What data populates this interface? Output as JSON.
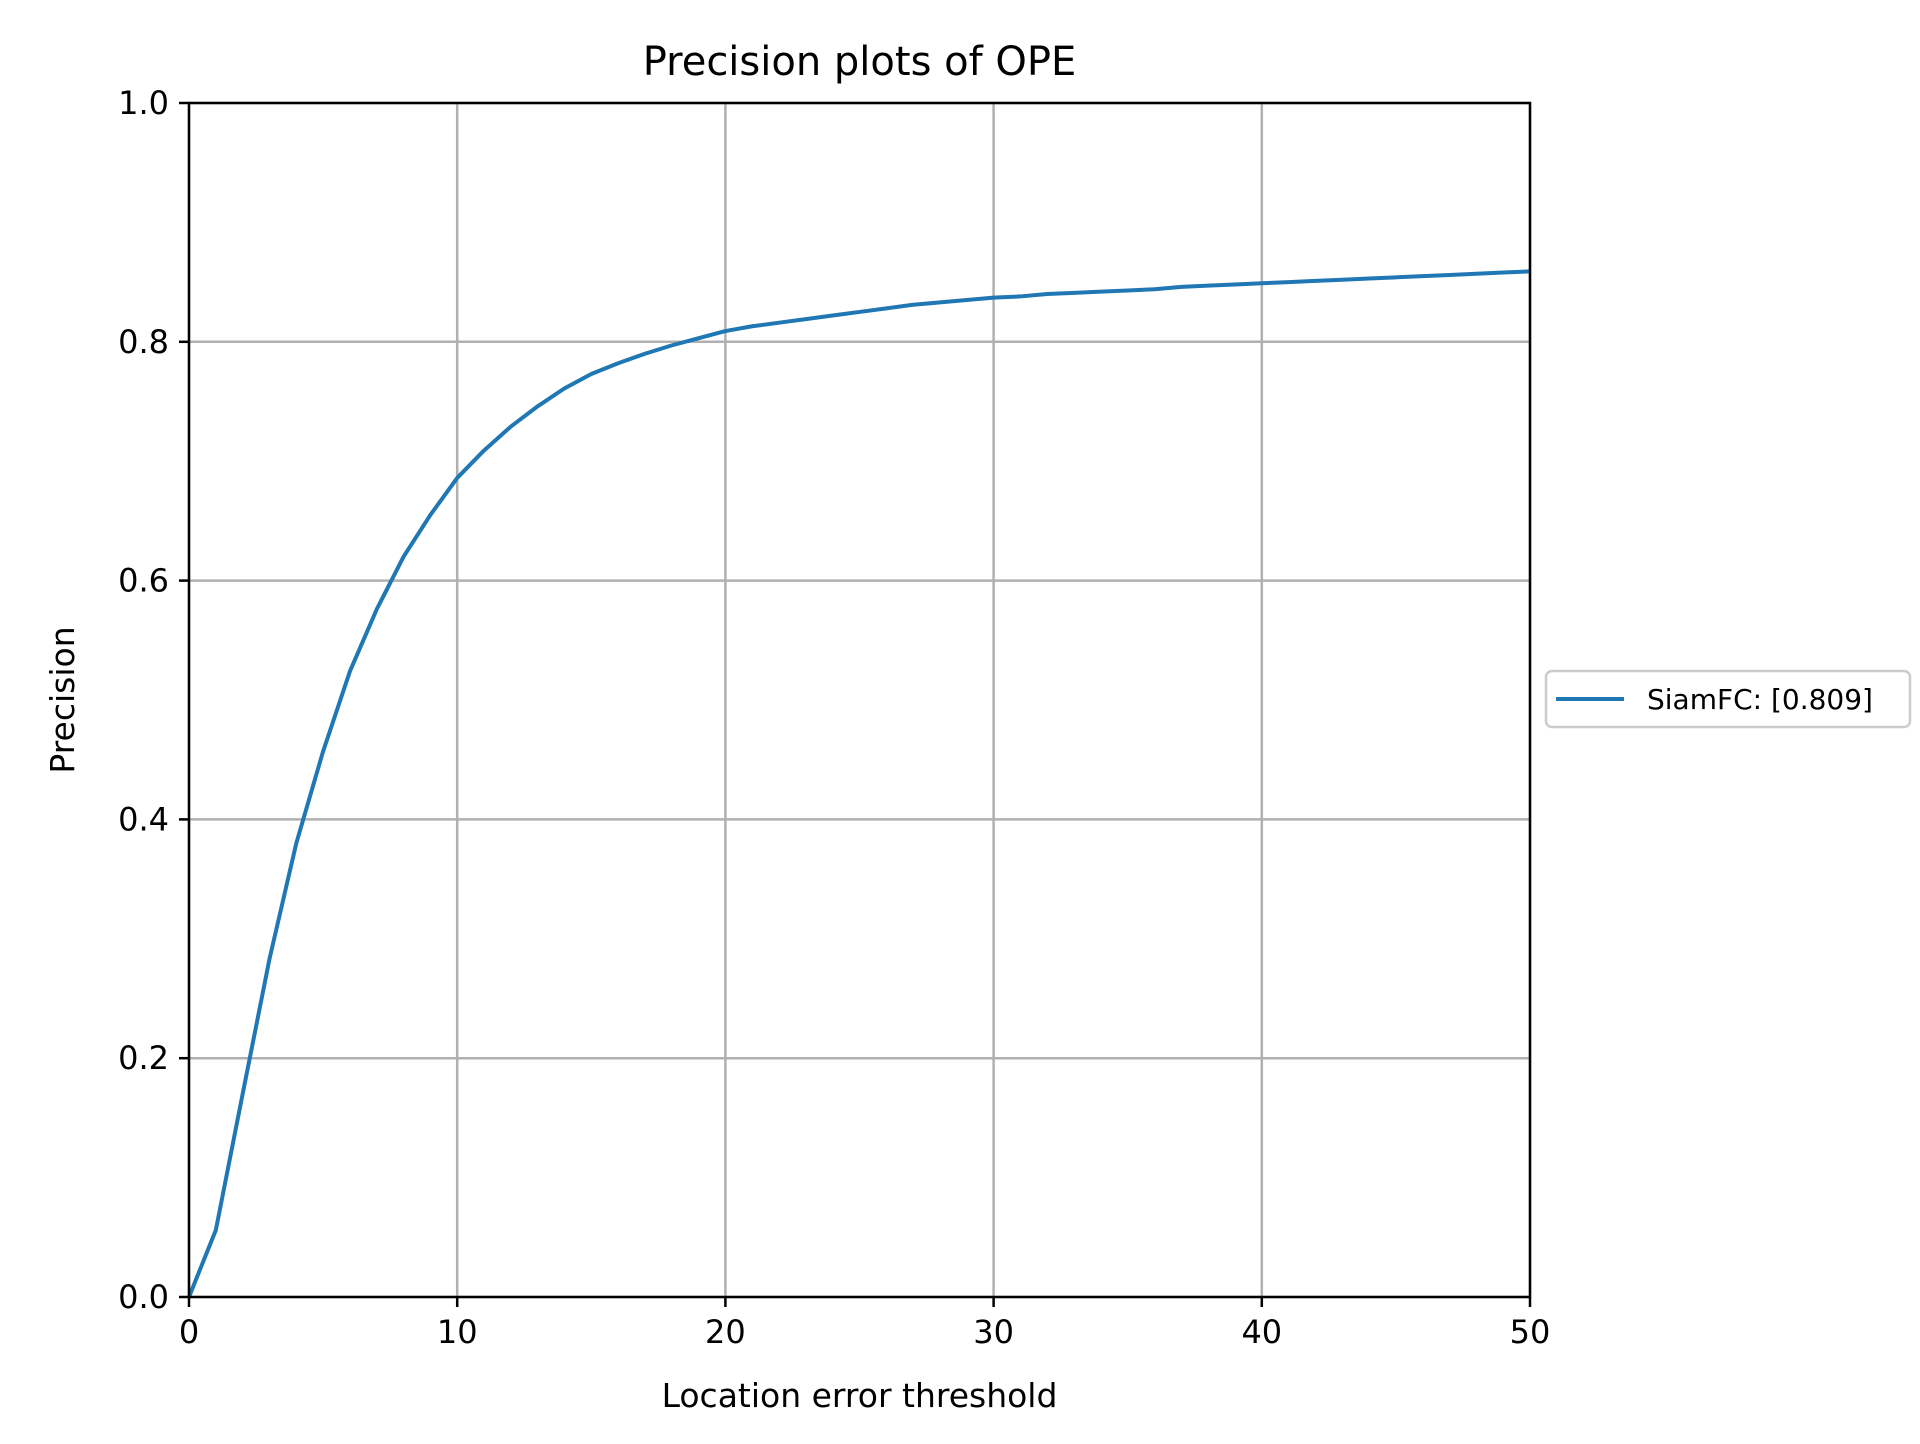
{
  "chart_data": {
    "type": "line",
    "title": "Precision plots of OPE",
    "xlabel": "Location error threshold",
    "ylabel": "Precision",
    "xlim": [
      0,
      50
    ],
    "ylim": [
      0,
      1.0
    ],
    "grid": true,
    "xticks": [
      0,
      10,
      20,
      30,
      40,
      50
    ],
    "xtick_labels": [
      "0",
      "10",
      "20",
      "30",
      "40",
      "50"
    ],
    "yticks": [
      0.0,
      0.2,
      0.4,
      0.6,
      0.8,
      1.0
    ],
    "ytick_labels": [
      "0.0",
      "0.2",
      "0.4",
      "0.6",
      "0.8",
      "1.0"
    ],
    "legend_position": "center-right outside",
    "series": [
      {
        "name": "SiamFC",
        "legend_label": "SiamFC: [0.809]",
        "color": "#1f77b4",
        "x": [
          0,
          1,
          2,
          3,
          4,
          5,
          6,
          7,
          8,
          9,
          10,
          11,
          12,
          13,
          14,
          15,
          16,
          17,
          18,
          19,
          20,
          21,
          22,
          23,
          24,
          25,
          26,
          27,
          28,
          29,
          30,
          31,
          32,
          33,
          34,
          35,
          36,
          37,
          38,
          39,
          40,
          41,
          42,
          43,
          44,
          45,
          46,
          47,
          48,
          49,
          50
        ],
        "values": [
          0.0,
          0.056,
          0.17,
          0.283,
          0.38,
          0.457,
          0.524,
          0.576,
          0.62,
          0.655,
          0.686,
          0.709,
          0.729,
          0.746,
          0.761,
          0.773,
          0.782,
          0.79,
          0.797,
          0.803,
          0.809,
          0.813,
          0.816,
          0.819,
          0.822,
          0.825,
          0.828,
          0.831,
          0.833,
          0.835,
          0.837,
          0.838,
          0.84,
          0.841,
          0.842,
          0.843,
          0.844,
          0.846,
          0.847,
          0.848,
          0.849,
          0.85,
          0.851,
          0.852,
          0.853,
          0.854,
          0.855,
          0.856,
          0.857,
          0.858,
          0.859
        ]
      }
    ]
  }
}
